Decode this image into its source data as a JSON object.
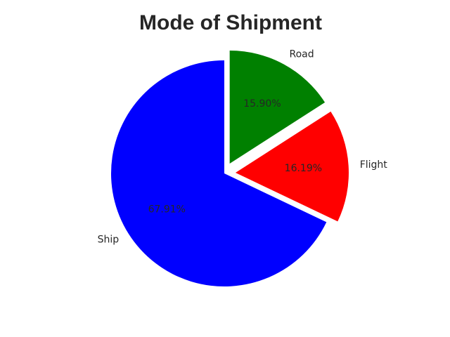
{
  "chart_data": {
    "type": "pie",
    "title": "Mode of Shipment",
    "categories": [
      "Road",
      "Flight",
      "Ship"
    ],
    "values": [
      15.9,
      16.19,
      67.91
    ],
    "value_labels": [
      "15.90%",
      "16.19%",
      "67.91%"
    ],
    "colors": [
      "#008000",
      "#ff0000",
      "#0000ff"
    ],
    "exploded": [
      "Road",
      "Flight"
    ],
    "start_angle_deg": 90,
    "direction": "clockwise",
    "legend": "none",
    "grid": false
  }
}
